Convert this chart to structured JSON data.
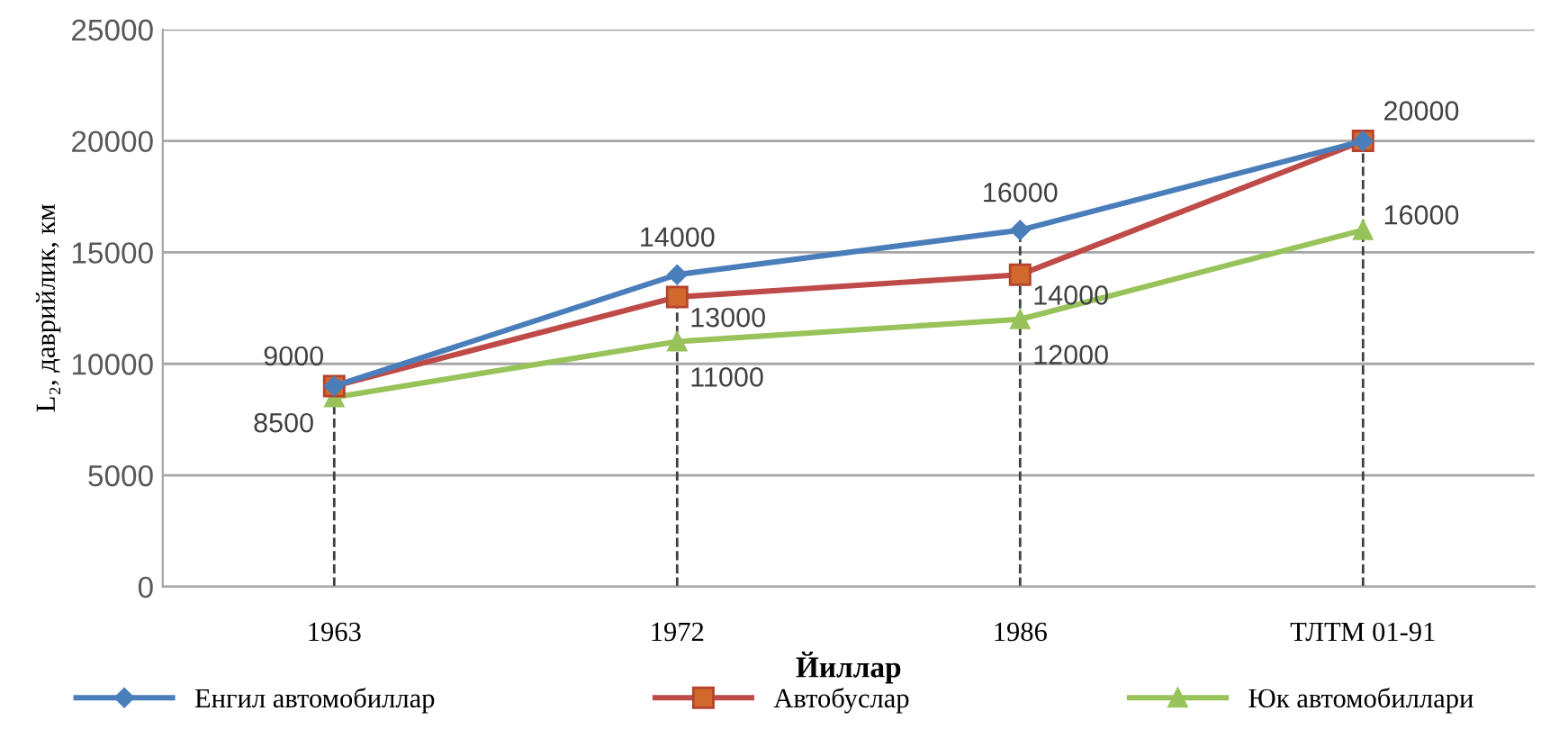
{
  "chart_data": {
    "type": "line",
    "xlabel": "Йиллар",
    "ylabel": "L₂, даврийлик, км",
    "categories": [
      "1963",
      "1972",
      "1986",
      "ТЛТМ 01-91"
    ],
    "series": [
      {
        "name": "Енгил автомобиллар",
        "color": "#4a7ebb",
        "marker": "diamond",
        "values": [
          9000,
          14000,
          16000,
          20000
        ],
        "value_labels": [
          "9000",
          "14000",
          "16000",
          "20000"
        ]
      },
      {
        "name": "Автобуслар",
        "color": "#be4b48",
        "marker": "square",
        "values": [
          9000,
          13000,
          14000,
          20000
        ],
        "value_labels": [
          null,
          "13000",
          "14000",
          null
        ]
      },
      {
        "name": "Юк автомобиллари",
        "color": "#98c35a",
        "marker": "triangle",
        "values": [
          8500,
          11000,
          12000,
          16000
        ],
        "value_labels": [
          "8500",
          "11000",
          "12000",
          "16000"
        ]
      }
    ],
    "ylim": [
      0,
      25000
    ],
    "yticks": [
      0,
      5000,
      10000,
      15000,
      20000,
      25000
    ],
    "grid": "y",
    "legend": "bottom",
    "line_style": "solid",
    "ref_lines": [
      {
        "axis": "x",
        "value": "1963",
        "line_style": "dashed",
        "color": "#404040"
      },
      {
        "axis": "x",
        "value": "1972",
        "line_style": "dashed",
        "color": "#404040"
      },
      {
        "axis": "x",
        "value": "1986",
        "line_style": "dashed",
        "color": "#404040"
      },
      {
        "axis": "x",
        "value": "ТЛТМ 01-91",
        "line_style": "dashed",
        "color": "#404040"
      }
    ]
  }
}
